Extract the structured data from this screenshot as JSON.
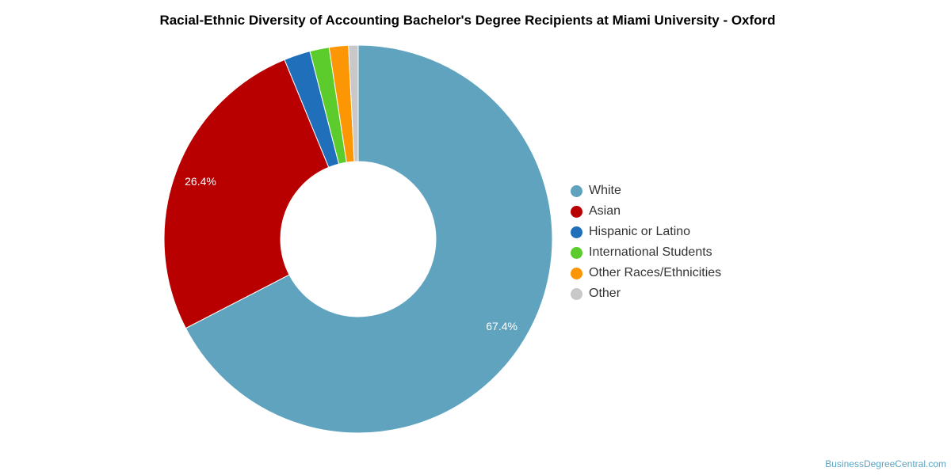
{
  "chart_data": {
    "type": "pie",
    "style": "donut",
    "title": "Racial-Ethnic Diversity of Accounting Bachelor's Degree Recipients at Miami University - Oxford",
    "categories": [
      "White",
      "Asian",
      "Hispanic or Latino",
      "International Students",
      "Other Races/Ethnicities",
      "Other"
    ],
    "values": [
      67.4,
      26.4,
      2.2,
      1.6,
      1.6,
      0.8
    ],
    "colors": [
      "#5fa3bf",
      "#b90000",
      "#1f6fbb",
      "#5bcc2b",
      "#fc9605",
      "#c8c8c8"
    ],
    "data_labels": [
      "67.4%",
      "26.4%",
      "",
      "",
      "",
      ""
    ],
    "legend_position": "right"
  },
  "credit": "BusinessDegreeCentral.com"
}
